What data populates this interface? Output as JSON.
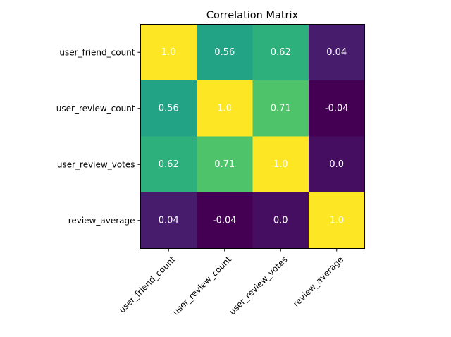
{
  "chart_data": {
    "type": "heatmap",
    "title": "Correlation Matrix",
    "x_categories": [
      "user_friend_count",
      "user_review_count",
      "user_review_votes",
      "review_average"
    ],
    "y_categories": [
      "user_friend_count",
      "user_review_count",
      "user_review_votes",
      "review_average"
    ],
    "values": [
      [
        1.0,
        0.56,
        0.62,
        0.04
      ],
      [
        0.56,
        1.0,
        0.71,
        -0.04
      ],
      [
        0.62,
        0.71,
        1.0,
        0.0
      ],
      [
        0.04,
        -0.04,
        0.0,
        1.0
      ]
    ],
    "value_labels": [
      [
        "1.0",
        "0.56",
        "0.62",
        "0.04"
      ],
      [
        "0.56",
        "1.0",
        "0.71",
        "-0.04"
      ],
      [
        "0.62",
        "0.71",
        "1.0",
        "0.0"
      ],
      [
        "0.04",
        "-0.04",
        "0.0",
        "1.0"
      ]
    ],
    "colormap": "viridis",
    "value_range": [
      -0.04,
      1.0
    ],
    "grid": false,
    "legend": "none"
  }
}
